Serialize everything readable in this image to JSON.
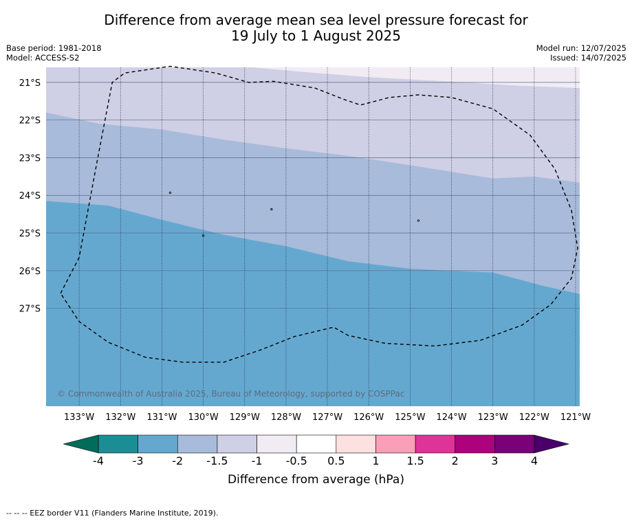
{
  "title_line1": "Difference from average mean sea level pressure forecast for",
  "title_line2": "19 July to 1 August 2025",
  "base_period": "Base period: 1981-2018",
  "model": "Model: ACCESS-S2",
  "model_run": "Model run: 12/07/2025",
  "issued": "Issued: 14/07/2025",
  "copyright": "© Commonwealth of Australia 2025, Bureau of Meteorology, supported by COSPPac",
  "footer": "--  --  -- EEZ border V11 (Flanders Marine Institute, 2019).",
  "map": {
    "lon_range": [
      -133.8,
      -120.9
    ],
    "lat_range": [
      -29.6,
      -20.6
    ],
    "lat_ticks": [
      -21,
      -22,
      -23,
      -24,
      -25,
      -26,
      -27
    ],
    "lat_tick_labels": [
      "21°S",
      "22°S",
      "23°S",
      "24°S",
      "25°S",
      "26°S",
      "27°S"
    ],
    "lon_ticks": [
      -133,
      -132,
      -131,
      -130,
      -129,
      -128,
      -127,
      -126,
      -125,
      -124,
      -123,
      -122,
      -121
    ],
    "lon_tick_labels": [
      "133°W",
      "132°W",
      "131°W",
      "130°W",
      "129°W",
      "128°W",
      "127°W",
      "126°W",
      "125°W",
      "124°W",
      "123°W",
      "122°W",
      "121°W"
    ],
    "field_bands": [
      {
        "range": "-3 to -2",
        "color": "#65a8cf"
      },
      {
        "range": "-2 to -1.5",
        "color": "#a8bbda"
      },
      {
        "range": "-1.5 to -1",
        "color": "#cfcfe5"
      },
      {
        "range": "-1 to -0.5",
        "color": "#f1ecf4"
      }
    ],
    "contour_-2": [
      [
        -133.8,
        -24.15
      ],
      [
        -132.3,
        -24.27
      ],
      [
        -131.0,
        -24.65
      ],
      [
        -129.5,
        -25.05
      ],
      [
        -128.0,
        -25.35
      ],
      [
        -126.5,
        -25.75
      ],
      [
        -125.0,
        -25.95
      ],
      [
        -123.0,
        -26.05
      ],
      [
        -121.8,
        -26.4
      ],
      [
        -120.9,
        -26.62
      ]
    ],
    "contour_-1.5": [
      [
        -133.8,
        -21.8
      ],
      [
        -132.5,
        -22.1
      ],
      [
        -131.0,
        -22.25
      ],
      [
        -129.5,
        -22.52
      ],
      [
        -128.0,
        -22.75
      ],
      [
        -126.5,
        -22.95
      ],
      [
        -125.0,
        -23.2
      ],
      [
        -123.0,
        -23.55
      ],
      [
        -122.0,
        -23.5
      ],
      [
        -120.9,
        -23.66
      ]
    ],
    "contour_-1": [
      [
        -128.8,
        -20.6
      ],
      [
        -127.5,
        -20.73
      ],
      [
        -126.0,
        -20.86
      ],
      [
        -124.0,
        -20.98
      ],
      [
        -122.5,
        -21.08
      ],
      [
        -120.9,
        -21.15
      ]
    ],
    "eez_border": [
      [
        -133.45,
        -26.6
      ],
      [
        -133.0,
        -25.65
      ],
      [
        -132.55,
        -23.0
      ],
      [
        -132.2,
        -21.0
      ],
      [
        -131.9,
        -20.75
      ],
      [
        -130.8,
        -20.57
      ],
      [
        -129.7,
        -20.75
      ],
      [
        -128.9,
        -21.0
      ],
      [
        -128.3,
        -20.97
      ],
      [
        -127.3,
        -21.15
      ],
      [
        -126.6,
        -21.45
      ],
      [
        -126.2,
        -21.6
      ],
      [
        -125.5,
        -21.4
      ],
      [
        -124.8,
        -21.33
      ],
      [
        -124.0,
        -21.4
      ],
      [
        -123.0,
        -21.7
      ],
      [
        -122.1,
        -22.4
      ],
      [
        -121.5,
        -23.3
      ],
      [
        -121.1,
        -24.4
      ],
      [
        -120.95,
        -25.4
      ],
      [
        -121.1,
        -26.2
      ],
      [
        -121.6,
        -26.9
      ],
      [
        -122.3,
        -27.45
      ],
      [
        -123.3,
        -27.85
      ],
      [
        -124.4,
        -28.0
      ],
      [
        -125.6,
        -27.93
      ],
      [
        -126.5,
        -27.72
      ],
      [
        -126.85,
        -27.5
      ],
      [
        -127.8,
        -27.75
      ],
      [
        -128.6,
        -28.1
      ],
      [
        -129.5,
        -28.43
      ],
      [
        -130.5,
        -28.43
      ],
      [
        -131.4,
        -28.3
      ],
      [
        -132.3,
        -27.9
      ],
      [
        -133.0,
        -27.35
      ],
      [
        -133.45,
        -26.6
      ]
    ],
    "islands": [
      [
        -130.8,
        -23.93
      ],
      [
        -128.35,
        -24.37
      ],
      [
        -124.8,
        -24.67
      ],
      [
        -130.0,
        -25.07
      ]
    ]
  },
  "colorbar": {
    "label": "Difference from average (hPa)",
    "bins": [
      {
        "color": "#1b8e95"
      },
      {
        "color": "#65a8cf"
      },
      {
        "color": "#a8bbda"
      },
      {
        "color": "#cfcfe5"
      },
      {
        "color": "#f1ecf4"
      },
      {
        "color": "#ffffff"
      },
      {
        "color": "#fde0e0"
      },
      {
        "color": "#f99fb8"
      },
      {
        "color": "#de3497"
      },
      {
        "color": "#ad017e"
      },
      {
        "color": "#7a0177"
      }
    ],
    "under_color": "#016c59",
    "over_color": "#49006a",
    "tick_labels": [
      "-4",
      "-3",
      "-2",
      "-1.5",
      "-1",
      "-0.5",
      "0.5",
      "1",
      "1.5",
      "2",
      "3",
      "4"
    ]
  }
}
